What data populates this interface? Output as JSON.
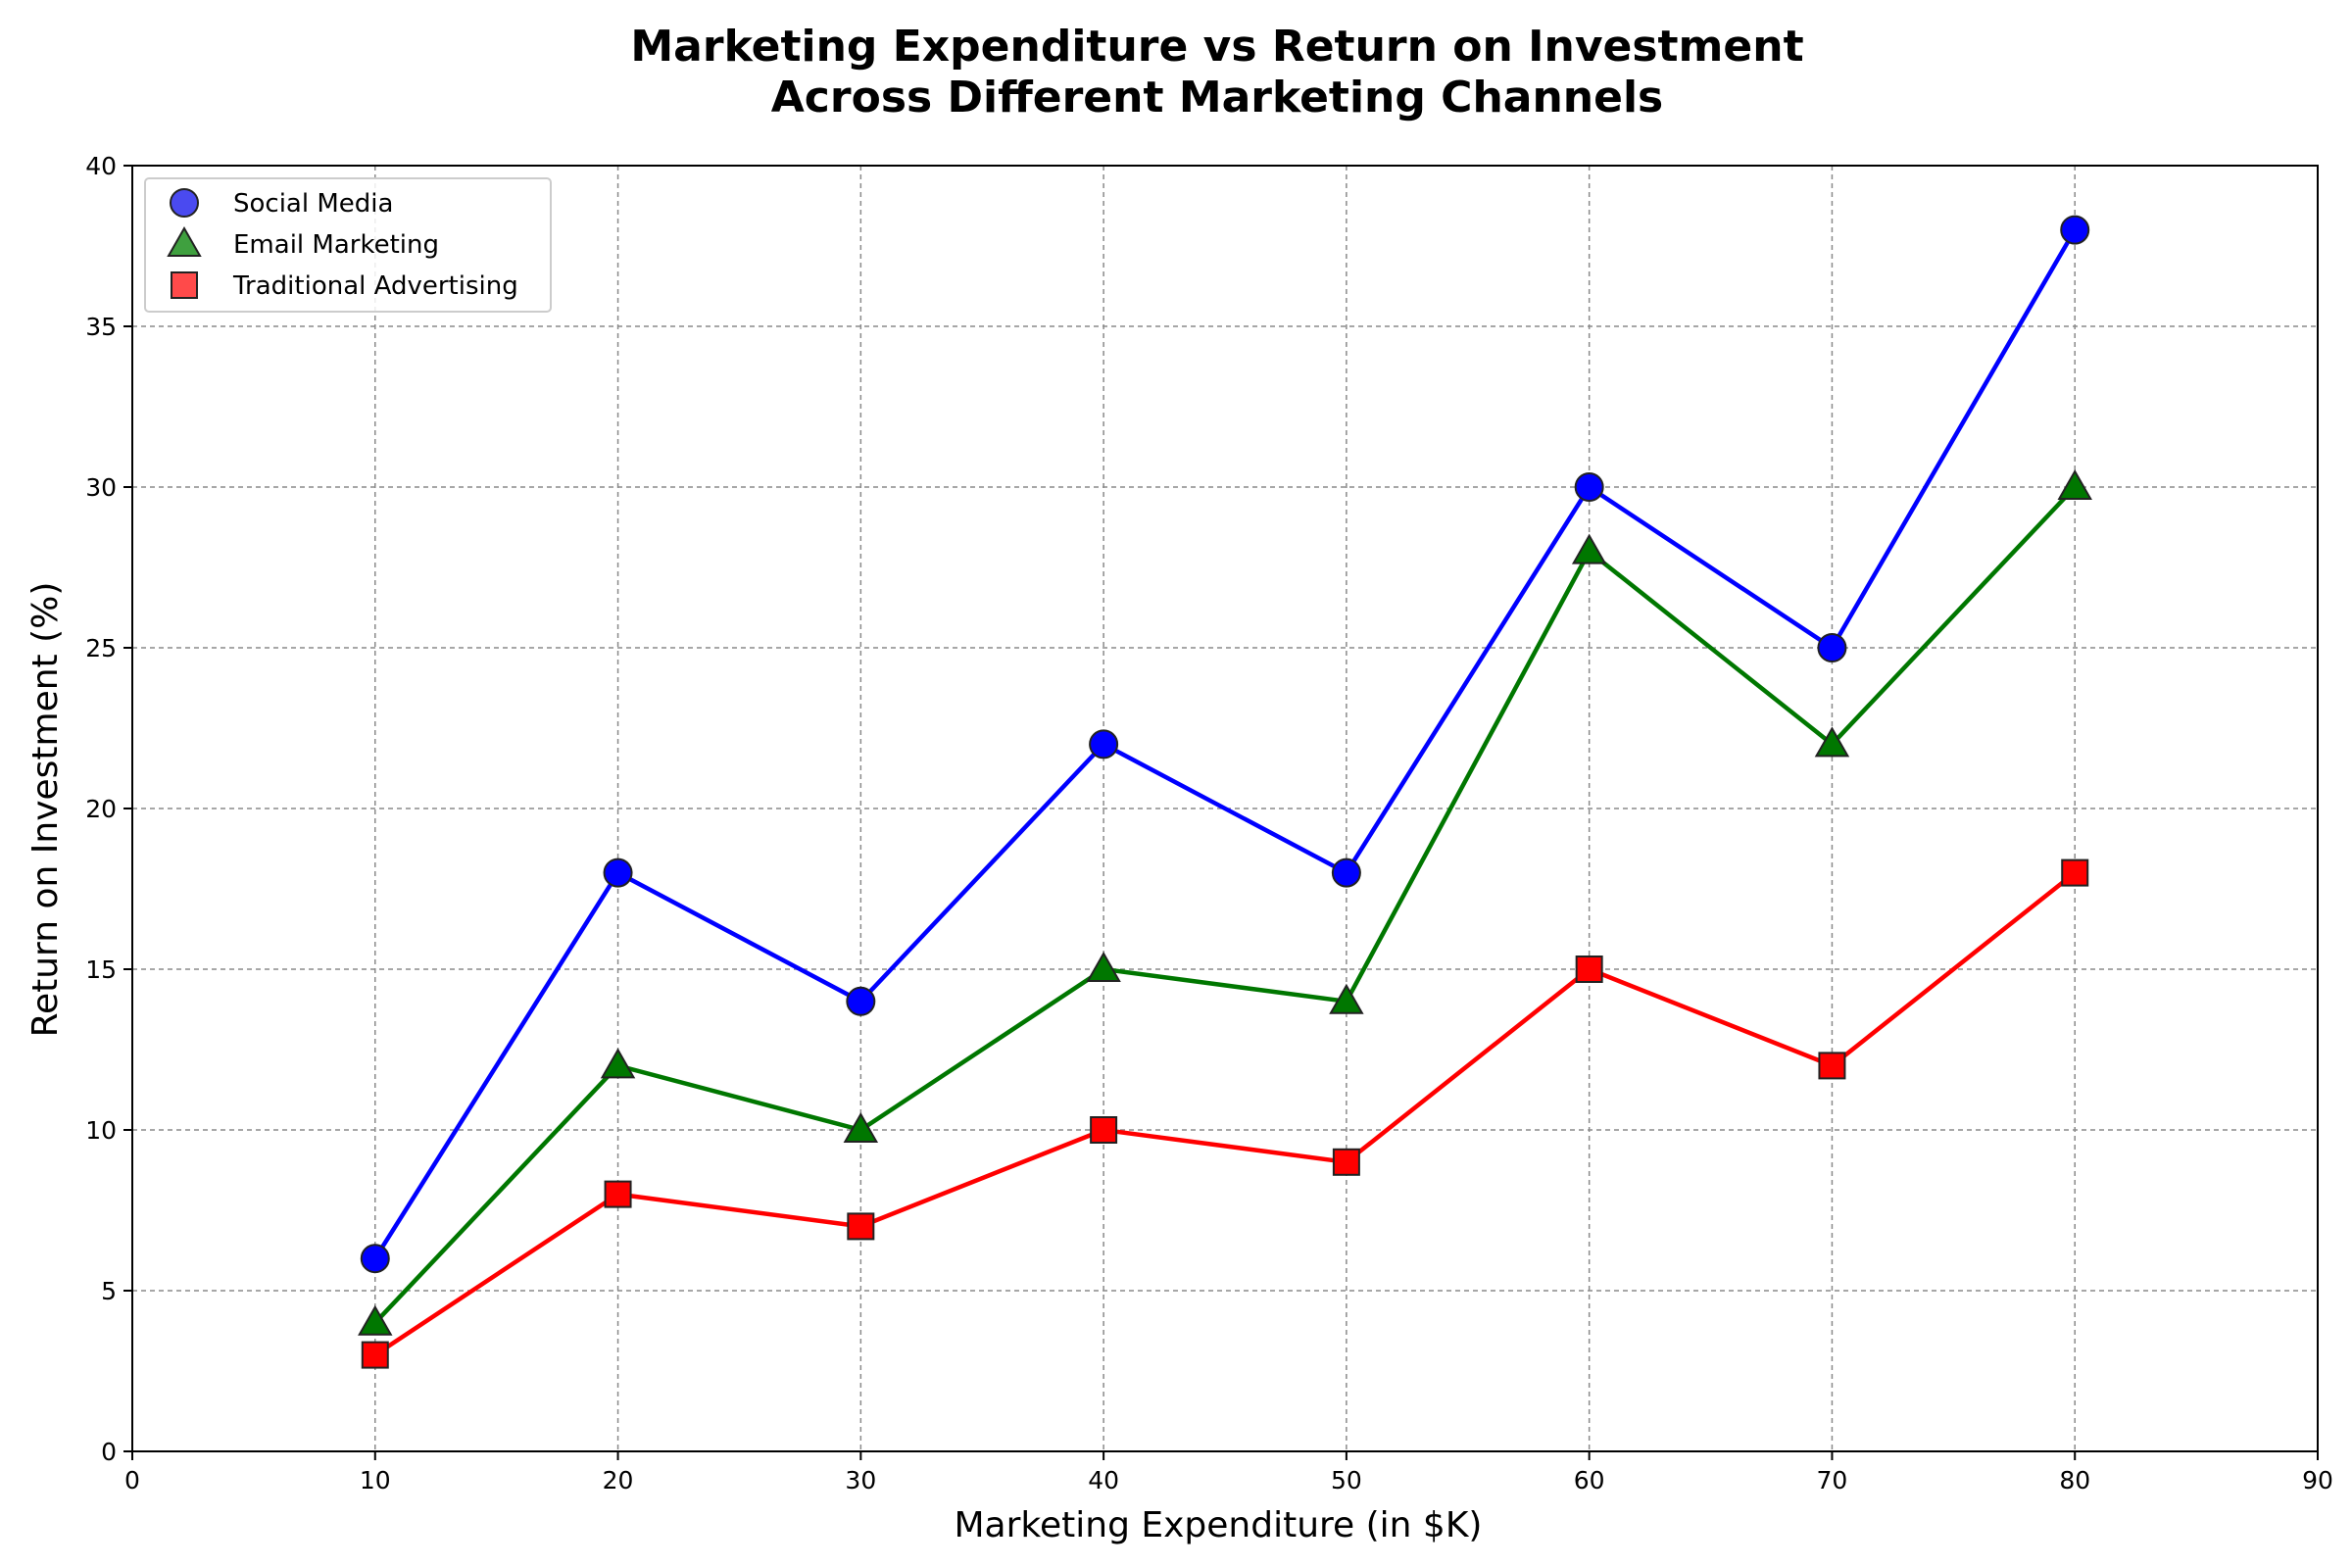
{
  "chart_data": {
    "type": "line",
    "title": [
      "Marketing Expenditure vs Return on Investment",
      "Across Different Marketing Channels"
    ],
    "xlabel": "Marketing Expenditure (in $K)",
    "ylabel": "Return on Investment (%)",
    "xlim": [
      0,
      90
    ],
    "ylim": [
      0,
      40
    ],
    "xticks": [
      0,
      10,
      20,
      30,
      40,
      50,
      60,
      70,
      80,
      90
    ],
    "yticks": [
      0,
      5,
      10,
      15,
      20,
      25,
      30,
      35,
      40
    ],
    "grid": true,
    "legend_position": "top-left",
    "x": [
      10,
      20,
      30,
      40,
      50,
      60,
      70,
      80
    ],
    "series": [
      {
        "name": "Social Media",
        "marker": "circle",
        "color": "#0000ff",
        "legend_color": "#4a4af0",
        "values": [
          6,
          18,
          14,
          22,
          18,
          30,
          25,
          38
        ]
      },
      {
        "name": "Email Marketing",
        "marker": "triangle",
        "color": "#007700",
        "legend_color": "#3fa03f",
        "values": [
          4,
          12,
          10,
          15,
          14,
          28,
          22,
          30
        ]
      },
      {
        "name": "Traditional Advertising",
        "marker": "square",
        "color": "#ff0000",
        "legend_color": "#ff4a4a",
        "values": [
          3,
          8,
          7,
          10,
          9,
          15,
          12,
          18
        ]
      }
    ]
  }
}
